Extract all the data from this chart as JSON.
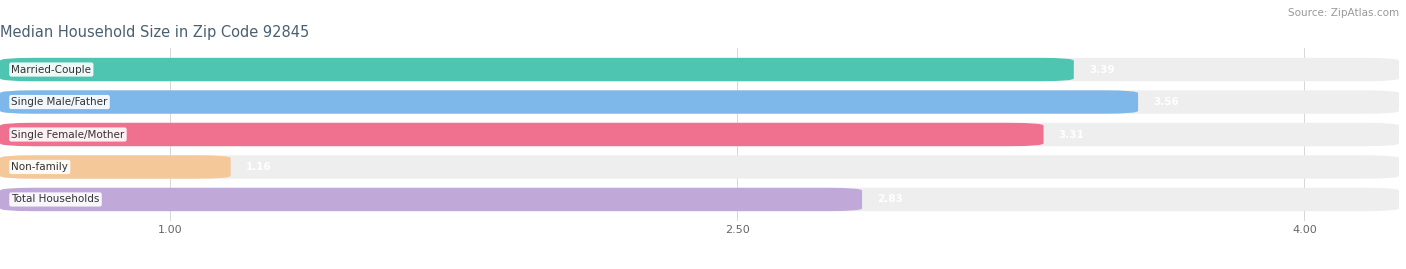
{
  "title": "Median Household Size in Zip Code 92845",
  "source": "Source: ZipAtlas.com",
  "categories": [
    "Married-Couple",
    "Single Male/Father",
    "Single Female/Mother",
    "Non-family",
    "Total Households"
  ],
  "values": [
    3.39,
    3.56,
    3.31,
    1.16,
    2.83
  ],
  "bar_colors": [
    "#4EC5B0",
    "#7EB8EA",
    "#F07090",
    "#F5C89A",
    "#C0A8D8"
  ],
  "xmin": 0.55,
  "xmax": 4.25,
  "xlim_left": 0.55,
  "xlim_right": 4.25,
  "xticks": [
    1.0,
    2.5,
    4.0
  ],
  "title_color": "#4A6070",
  "title_fontsize": 10.5,
  "source_color": "#999999",
  "source_fontsize": 7.5,
  "bar_bg_color": "#eeeeee",
  "bar_height": 0.72,
  "bar_gap": 1.0,
  "label_fontsize": 7.5,
  "value_fontsize": 7.5
}
